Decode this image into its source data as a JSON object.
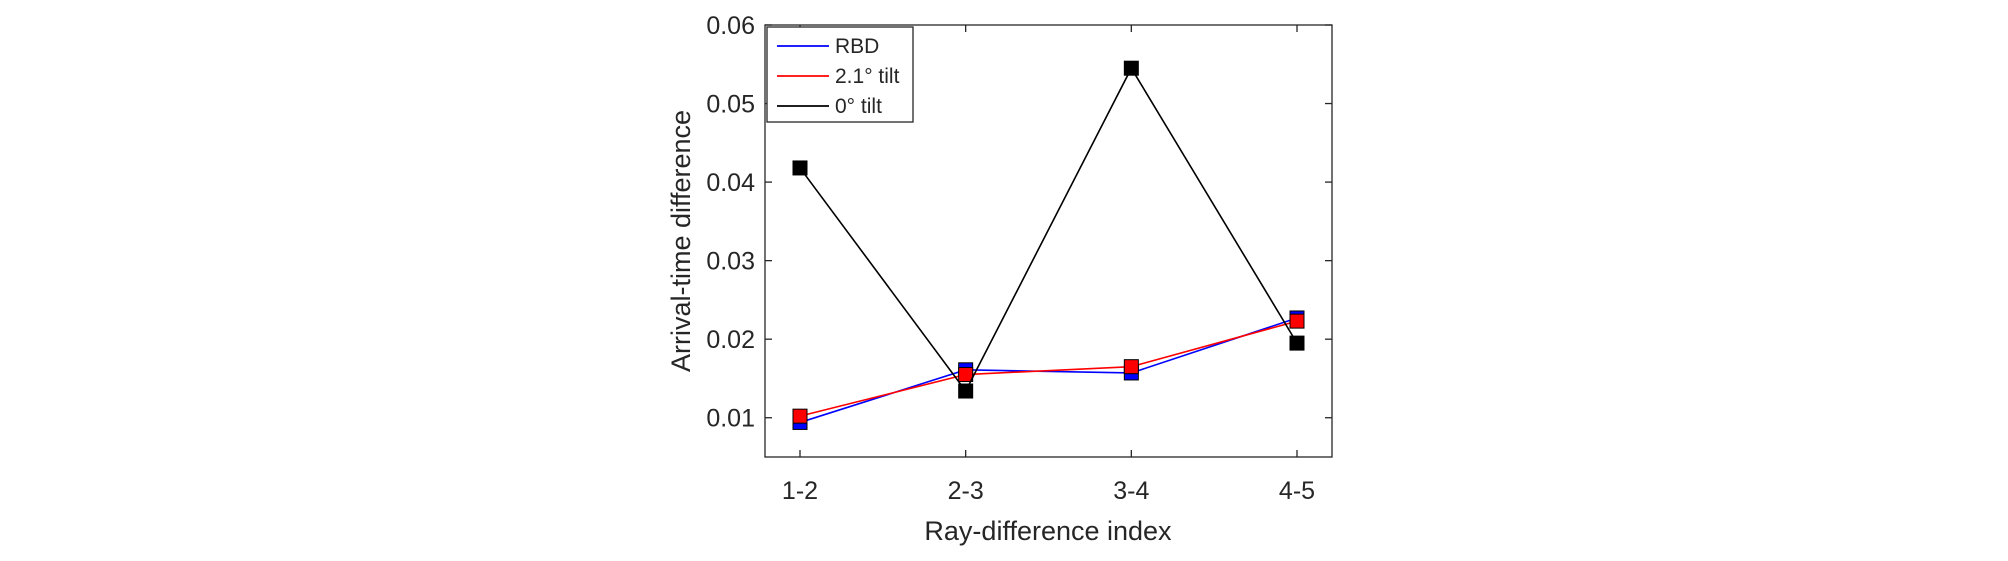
{
  "chart_data": {
    "type": "line",
    "title": "",
    "xlabel": "Ray-difference index",
    "ylabel": "Arrival-time difference",
    "categories": [
      "1-2",
      "2-3",
      "3-4",
      "4-5"
    ],
    "ylim": [
      0.005,
      0.06
    ],
    "yticks": [
      0.01,
      0.02,
      0.03,
      0.04,
      0.05,
      0.06
    ],
    "ytick_labels": [
      "0.01",
      "0.02",
      "0.03",
      "0.04",
      "0.05",
      "0.06"
    ],
    "grid": false,
    "legend_position": "top-left",
    "marker": "square",
    "series": [
      {
        "name": "RBD",
        "color": "#0000ff",
        "values": [
          0.0094,
          0.0161,
          0.0157,
          0.0227
        ]
      },
      {
        "name": "2.1° tilt",
        "color": "#ff0000",
        "values": [
          0.0102,
          0.0155,
          0.0165,
          0.0223
        ]
      },
      {
        "name": "0° tilt",
        "color": "#000000",
        "values": [
          0.0418,
          0.0134,
          0.0545,
          0.0195
        ]
      }
    ]
  }
}
